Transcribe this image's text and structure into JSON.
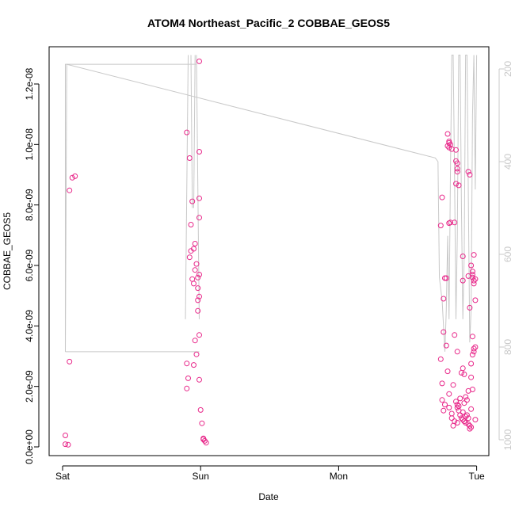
{
  "chart_data": {
    "type": "scatter",
    "title": "ATOM4 Northeast_Pacific_2 COBBAE_GEOS5",
    "xlabel": "Date",
    "ylabel": "COBBAE_GEOS5",
    "x_ticks": [
      "Sat",
      "Sun",
      "Mon",
      "Tue"
    ],
    "xlim": [
      "Sat 00:00",
      "Tue 03:00"
    ],
    "y_ticks": [
      "0.0e+00",
      "2.0e-09",
      "4.0e-09",
      "6.0e-09",
      "8.0e-09",
      "1.0e-08",
      "1.2e-08"
    ],
    "ylim": [
      0,
      1.33e-08
    ],
    "y2_ticks": [
      "200",
      "400",
      "600",
      "800",
      "1000"
    ],
    "y2lim": [
      1030,
      170
    ],
    "y2_reversed": true,
    "grid": false,
    "point_color": "#e8288a",
    "pressure_line_color": "#c8c8c8",
    "series": [
      {
        "values": [
          [
            0.07,
            8.9e-09
          ],
          [
            0.09,
            8.95e-09
          ],
          [
            0.05,
            8.48e-09
          ],
          [
            0.05,
            2.82e-09
          ],
          [
            0.02,
            3.8e-10
          ],
          [
            0.02,
            9e-11
          ],
          [
            0.04,
            7e-11
          ],
          [
            0.9,
            1.04e-08
          ],
          [
            0.92,
            9.55e-09
          ],
          [
            0.94,
            8.12e-09
          ],
          [
            0.93,
            7.35e-09
          ],
          [
            0.96,
            6.72e-09
          ],
          [
            0.95,
            6.55e-09
          ],
          [
            0.93,
            6.48e-09
          ],
          [
            0.92,
            6.27e-09
          ],
          [
            0.97,
            6.05e-09
          ],
          [
            0.96,
            5.85e-09
          ],
          [
            0.99,
            5.7e-09
          ],
          [
            0.98,
            5.6e-09
          ],
          [
            0.94,
            5.55e-09
          ],
          [
            0.95,
            5.4e-09
          ],
          [
            0.98,
            5.25e-09
          ],
          [
            0.99,
            4.97e-09
          ],
          [
            0.98,
            4.85e-09
          ],
          [
            0.98,
            4.5e-09
          ],
          [
            0.99,
            3.7e-09
          ],
          [
            0.96,
            3.52e-09
          ],
          [
            0.97,
            3.06e-09
          ],
          [
            0.9,
            2.76e-09
          ],
          [
            0.95,
            2.71e-09
          ],
          [
            0.91,
            2.27e-09
          ],
          [
            0.99,
            2.22e-09
          ],
          [
            0.9,
            1.93e-09
          ],
          [
            1.0,
            1.22e-09
          ],
          [
            1.01,
            7.8e-10
          ],
          [
            1.02,
            2.5e-10
          ],
          [
            1.03,
            2e-10
          ],
          [
            1.04,
            1.4e-10
          ],
          [
            1.02,
            2.8e-10
          ],
          [
            0.99,
            1.275e-08
          ],
          [
            0.99,
            9.76e-09
          ],
          [
            0.99,
            8.22e-09
          ],
          [
            0.99,
            7.58e-09
          ],
          [
            2.75,
            8.25e-09
          ],
          [
            2.74,
            7.32e-09
          ],
          [
            2.76,
            4.9e-09
          ],
          [
            2.77,
            5.58e-09
          ],
          [
            2.78,
            5.58e-09
          ],
          [
            2.79,
            1.035e-08
          ],
          [
            2.8,
            1.01e-08
          ],
          [
            2.8,
            1.005e-08
          ],
          [
            2.81,
            1e-08
          ],
          [
            2.79,
            9.95e-09
          ],
          [
            2.8,
            9.9e-09
          ],
          [
            2.82,
            9.85e-09
          ],
          [
            2.81,
            7.42e-09
          ],
          [
            2.8,
            7.4e-09
          ],
          [
            2.85,
            9.82e-09
          ],
          [
            2.85,
            9.45e-09
          ],
          [
            2.86,
            9.38e-09
          ],
          [
            2.86,
            9.2e-09
          ],
          [
            2.86,
            9.1e-09
          ],
          [
            2.85,
            8.7e-09
          ],
          [
            2.87,
            8.65e-09
          ],
          [
            2.84,
            7.42e-09
          ],
          [
            2.9,
            6.3e-09
          ],
          [
            2.9,
            5.5e-09
          ],
          [
            2.94,
            9.1e-09
          ],
          [
            2.95,
            9e-09
          ],
          [
            2.94,
            5.65e-09
          ],
          [
            2.95,
            4.6e-09
          ],
          [
            2.96,
            6e-09
          ],
          [
            2.97,
            5.8e-09
          ],
          [
            2.97,
            5.7e-09
          ],
          [
            2.98,
            5.5e-09
          ],
          [
            2.97,
            5.6e-09
          ],
          [
            2.98,
            5.4e-09
          ],
          [
            2.98,
            6.35e-09
          ],
          [
            2.99,
            5.55e-09
          ],
          [
            2.99,
            4.85e-09
          ],
          [
            2.97,
            3.65e-09
          ],
          [
            2.96,
            2.75e-09
          ],
          [
            2.99,
            3.3e-09
          ],
          [
            2.98,
            3.25e-09
          ],
          [
            2.98,
            3.15e-09
          ],
          [
            2.97,
            3.05e-09
          ],
          [
            2.76,
            3.8e-09
          ],
          [
            2.78,
            3.35e-09
          ],
          [
            2.74,
            2.9e-09
          ],
          [
            2.84,
            3.7e-09
          ],
          [
            2.86,
            3.15e-09
          ],
          [
            2.9,
            2.6e-09
          ],
          [
            2.89,
            2.45e-09
          ],
          [
            2.91,
            2.4e-09
          ],
          [
            2.96,
            2.3e-09
          ],
          [
            2.79,
            2.5e-09
          ],
          [
            2.75,
            2.1e-09
          ],
          [
            2.83,
            2.05e-09
          ],
          [
            2.8,
            1.75e-09
          ],
          [
            2.77,
            1.4e-09
          ],
          [
            2.76,
            1.2e-09
          ],
          [
            2.8,
            1.3e-09
          ],
          [
            2.82,
            1.1e-09
          ],
          [
            2.82,
            9.5e-10
          ],
          [
            2.84,
            8.5e-10
          ],
          [
            2.83,
            7e-10
          ],
          [
            2.85,
            1.5e-09
          ],
          [
            2.86,
            1.4e-09
          ],
          [
            2.86,
            1.3e-09
          ],
          [
            2.87,
            1.35e-09
          ],
          [
            2.87,
            1.2e-09
          ],
          [
            2.88,
            1.05e-09
          ],
          [
            2.89,
            9.5e-10
          ],
          [
            2.9,
            1.15e-09
          ],
          [
            2.9,
            9e-10
          ],
          [
            2.91,
            8.5e-10
          ],
          [
            2.92,
            1e-09
          ],
          [
            2.92,
            8e-10
          ],
          [
            2.93,
            1.55e-09
          ],
          [
            2.93,
            1.05e-09
          ],
          [
            2.94,
            9.5e-10
          ],
          [
            2.94,
            7.5e-10
          ],
          [
            2.95,
            7e-10
          ],
          [
            2.95,
            6e-10
          ],
          [
            2.96,
            6.5e-10
          ],
          [
            2.96,
            1.25e-09
          ],
          [
            2.97,
            1.9e-09
          ],
          [
            2.94,
            1.85e-09
          ],
          [
            2.92,
            1.65e-09
          ],
          [
            2.91,
            1.45e-09
          ],
          [
            2.99,
            9e-10
          ],
          [
            2.75,
            1.55e-09
          ],
          [
            2.88,
            1.6e-09
          ],
          [
            2.86,
            8e-10
          ]
        ]
      }
    ],
    "pressure_line": [
      [
        0.02,
        810
      ],
      [
        0.03,
        190
      ],
      [
        2.7,
        392
      ],
      [
        2.72,
        400
      ],
      [
        2.73,
        650
      ],
      [
        2.75,
        700
      ],
      [
        2.77,
        810
      ],
      [
        2.78,
        720
      ],
      [
        2.79,
        560
      ],
      [
        2.8,
        740
      ],
      [
        2.81,
        430
      ],
      [
        2.82,
        170
      ],
      [
        2.83,
        170
      ],
      [
        2.84,
        430
      ],
      [
        2.85,
        740
      ],
      [
        2.86,
        560
      ],
      [
        2.87,
        170
      ],
      [
        2.88,
        170
      ],
      [
        2.89,
        500
      ],
      [
        2.9,
        740
      ],
      [
        2.91,
        600
      ],
      [
        2.92,
        170
      ],
      [
        2.93,
        170
      ],
      [
        2.94,
        480
      ],
      [
        2.95,
        790
      ],
      [
        2.96,
        720
      ],
      [
        2.97,
        300
      ],
      [
        2.98,
        170
      ],
      [
        2.99,
        460
      ],
      [
        3.0,
        170
      ]
    ],
    "pressure_rect": [
      0.02,
      0.99,
      190,
      810
    ],
    "pressure_spikes": [
      [
        0.89,
        0.91,
        740,
        170
      ],
      [
        0.93,
        0.94,
        170,
        500
      ],
      [
        0.95,
        0.96,
        500,
        170
      ],
      [
        0.97,
        0.99,
        170,
        740
      ]
    ]
  }
}
